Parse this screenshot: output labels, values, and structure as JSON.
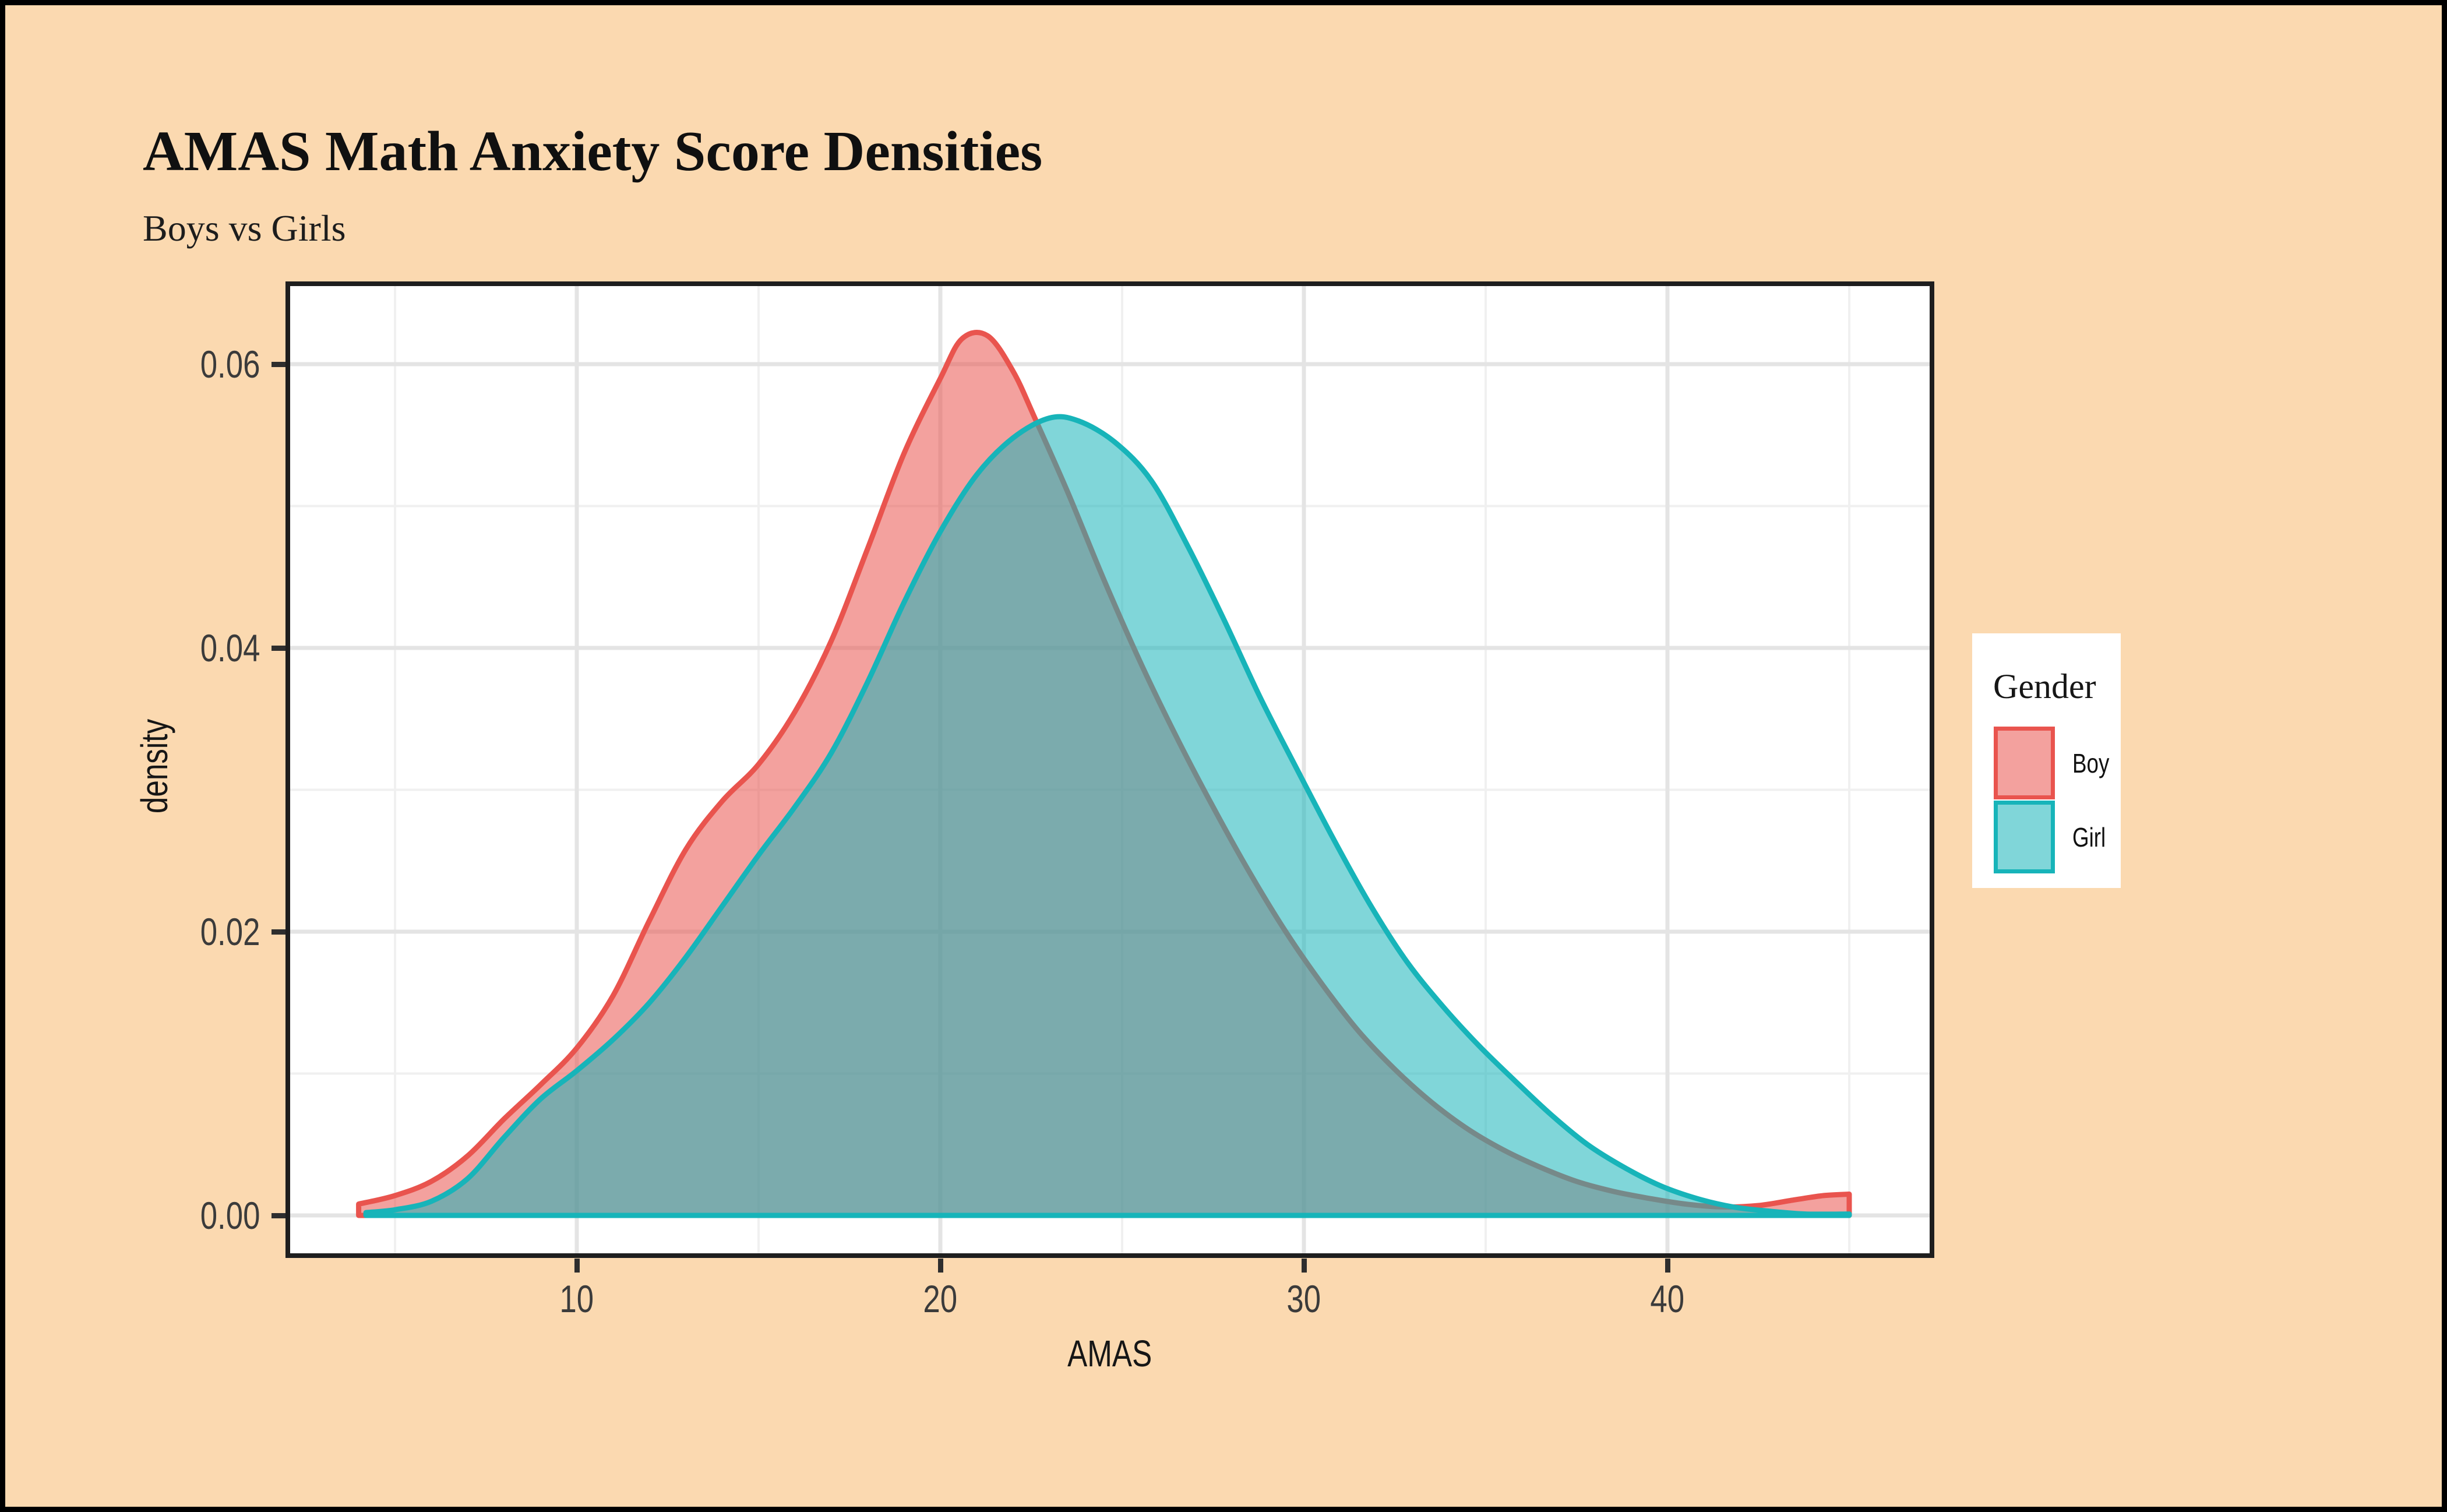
{
  "title": "AMAS Math Anxiety Score Densities",
  "subtitle": "Boys vs Girls",
  "colors": {
    "page_background": "#FBD9B0",
    "page_border": "#000000",
    "panel_background": "#FFFFFF",
    "panel_border": "#1E1E1E",
    "grid_major": "#E4E4E4",
    "grid_minor": "#F0F0F0",
    "tick_text": "#3B3B3B",
    "boy": "#E9544E",
    "girl": "#17B4B9"
  },
  "chart_data": {
    "type": "area",
    "subtype": "density",
    "title": "AMAS Math Anxiety Score Densities",
    "subtitle": "Boys vs Girls",
    "xlabel": "AMAS",
    "ylabel": "density",
    "xlim": [
      1.95,
      47.3
    ],
    "ylim": [
      -0.003,
      0.0658
    ],
    "grid": true,
    "legend_position": "right",
    "legend_title": "Gender",
    "x_ticks": [
      {
        "value": 10,
        "label": "10"
      },
      {
        "value": 20,
        "label": "20"
      },
      {
        "value": 30,
        "label": "30"
      },
      {
        "value": 40,
        "label": "40"
      }
    ],
    "x_minor": [
      5,
      15,
      25,
      35,
      45
    ],
    "y_ticks": [
      {
        "value": 0.0,
        "label": "0.00"
      },
      {
        "value": 0.02,
        "label": "0.02"
      },
      {
        "value": 0.04,
        "label": "0.04"
      },
      {
        "value": 0.06,
        "label": "0.06"
      }
    ],
    "y_minor": [
      0.01,
      0.03,
      0.05
    ],
    "series": [
      {
        "name": "Boy",
        "color": "#E9544E",
        "fill_opacity": 0.55,
        "peak": {
          "x": 20.8,
          "density": 0.062
        },
        "points": [
          [
            4.0,
            0.0008
          ],
          [
            5,
            0.0014
          ],
          [
            6,
            0.0024
          ],
          [
            7,
            0.0042
          ],
          [
            8,
            0.0068
          ],
          [
            9,
            0.0092
          ],
          [
            10,
            0.0118
          ],
          [
            11,
            0.0155
          ],
          [
            12,
            0.0208
          ],
          [
            13,
            0.0258
          ],
          [
            14,
            0.0292
          ],
          [
            15,
            0.0318
          ],
          [
            16,
            0.0355
          ],
          [
            17,
            0.0405
          ],
          [
            18,
            0.047
          ],
          [
            19,
            0.0537
          ],
          [
            20,
            0.059
          ],
          [
            20.6,
            0.0618
          ],
          [
            21.3,
            0.062
          ],
          [
            22,
            0.0595
          ],
          [
            22.6,
            0.0562
          ],
          [
            23.5,
            0.051
          ],
          [
            24.5,
            0.0448
          ],
          [
            25.5,
            0.039
          ],
          [
            26.5,
            0.0337
          ],
          [
            27.5,
            0.0288
          ],
          [
            28.5,
            0.0242
          ],
          [
            29.5,
            0.02
          ],
          [
            30.5,
            0.0163
          ],
          [
            31.5,
            0.013
          ],
          [
            32.5,
            0.0103
          ],
          [
            33.5,
            0.008
          ],
          [
            34.5,
            0.0061
          ],
          [
            35.5,
            0.0046
          ],
          [
            36.5,
            0.0034
          ],
          [
            37.5,
            0.0024
          ],
          [
            38.5,
            0.0017
          ],
          [
            39.5,
            0.0012
          ],
          [
            40.5,
            0.0008
          ],
          [
            41.5,
            0.0006
          ],
          [
            42.5,
            0.0007
          ],
          [
            43.5,
            0.0011
          ],
          [
            44.3,
            0.0014
          ],
          [
            45,
            0.0015
          ]
        ]
      },
      {
        "name": "Girl",
        "color": "#17B4B9",
        "fill_opacity": 0.55,
        "peak": {
          "x": 23.0,
          "density": 0.0562
        },
        "points": [
          [
            4.2,
            0.0002
          ],
          [
            5,
            0.0004
          ],
          [
            6,
            0.001
          ],
          [
            7,
            0.0026
          ],
          [
            8,
            0.0055
          ],
          [
            9,
            0.0082
          ],
          [
            10,
            0.0102
          ],
          [
            11,
            0.0124
          ],
          [
            12,
            0.015
          ],
          [
            13,
            0.0182
          ],
          [
            14,
            0.0218
          ],
          [
            15,
            0.0254
          ],
          [
            16,
            0.0288
          ],
          [
            17,
            0.0326
          ],
          [
            18,
            0.0376
          ],
          [
            19,
            0.0432
          ],
          [
            20,
            0.0482
          ],
          [
            21,
            0.0522
          ],
          [
            22,
            0.0548
          ],
          [
            23,
            0.0562
          ],
          [
            23.8,
            0.056
          ],
          [
            24.8,
            0.0545
          ],
          [
            25.8,
            0.0518
          ],
          [
            26.8,
            0.0472
          ],
          [
            27.8,
            0.042
          ],
          [
            28.8,
            0.0365
          ],
          [
            29.8,
            0.0315
          ],
          [
            30.8,
            0.0266
          ],
          [
            31.8,
            0.022
          ],
          [
            32.8,
            0.018
          ],
          [
            33.8,
            0.0148
          ],
          [
            34.8,
            0.012
          ],
          [
            35.8,
            0.0095
          ],
          [
            36.8,
            0.0071
          ],
          [
            37.8,
            0.005
          ],
          [
            38.8,
            0.0034
          ],
          [
            39.8,
            0.0021
          ],
          [
            40.8,
            0.0012
          ],
          [
            41.8,
            0.0006
          ],
          [
            42.8,
            0.0003
          ],
          [
            43.8,
            0.0001
          ],
          [
            45,
            0.0001
          ]
        ]
      }
    ]
  }
}
